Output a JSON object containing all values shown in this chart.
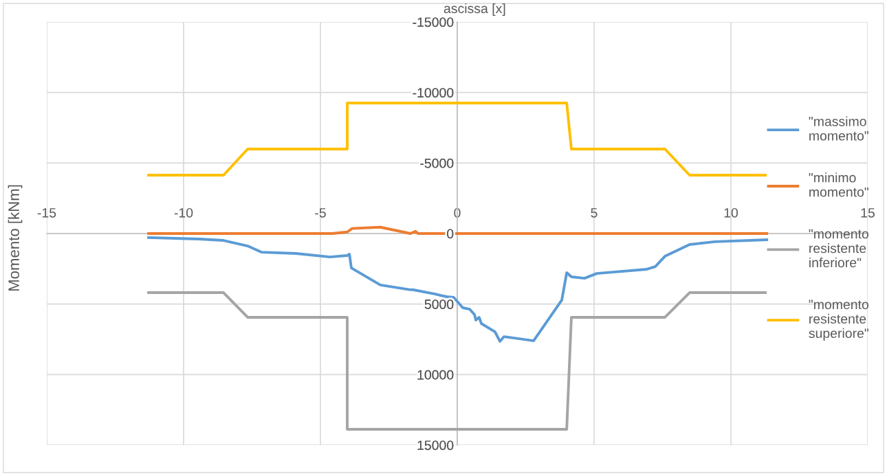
{
  "chart_data": {
    "type": "line",
    "xlabel": "ascissa [x]",
    "ylabel": "Momento [kNm]",
    "xlim": [
      -15,
      15
    ],
    "xticks": [
      -15,
      -10,
      -5,
      0,
      5,
      10,
      15
    ],
    "ylim": [
      15000,
      -15000
    ],
    "yticks": [
      -15000,
      -10000,
      -5000,
      0,
      5000,
      10000,
      15000
    ],
    "grid": true,
    "legend": "right",
    "line_style": "solid",
    "series": [
      {
        "name": "\"massimo\nmomento\"",
        "color": "#5b9bd5",
        "x": [
          -11.28,
          -9.42,
          -8.54,
          -7.66,
          -7.16,
          -5.9,
          -4.65,
          -4.02,
          -3.94,
          -3.87,
          -2.81,
          -1.71,
          -1.63,
          -0.8,
          -0.63,
          -0.38,
          -0.13,
          0.2,
          0.45,
          0.63,
          0.68,
          0.8,
          0.88,
          1.38,
          1.56,
          1.71,
          2.79,
          3.82,
          4.0,
          4.17,
          4.65,
          5.1,
          6.93,
          7.24,
          7.59,
          8.49,
          9.42,
          11.31
        ],
        "values": [
          290,
          390,
          490,
          880,
          1320,
          1410,
          1660,
          1560,
          1460,
          2440,
          3650,
          3990,
          3980,
          4290,
          4380,
          4480,
          4530,
          5260,
          5360,
          5750,
          6140,
          5940,
          6380,
          6970,
          7650,
          7310,
          7600,
          4720,
          2780,
          3070,
          3170,
          2830,
          2530,
          2340,
          1610,
          780,
          580,
          440
        ]
      },
      {
        "name": "\"minimo\nmomento\"",
        "color": "#ed7d31",
        "x": [
          -11.28,
          -4.57,
          -4.02,
          -3.84,
          -2.81,
          -1.71,
          -1.53,
          -1.43,
          11.31
        ],
        "values": [
          0,
          0,
          -110,
          -360,
          -450,
          0,
          -160,
          0,
          0
        ]
      },
      {
        "name": "\"momento\nresistente\ninferiore\"",
        "color": "#a5a5a5",
        "x": [
          -11.28,
          -8.54,
          -7.66,
          -4.02,
          -4.02,
          4.0,
          4.17,
          7.59,
          8.49,
          11.26
        ],
        "values": [
          4190,
          4190,
          5940,
          5940,
          13880,
          13880,
          5940,
          5940,
          4190,
          4190
        ]
      },
      {
        "name": "\"momento\nresistente\nsuperiore\"",
        "color": "#ffc000",
        "x": [
          -11.28,
          -8.54,
          -7.66,
          -4.02,
          -4.02,
          4.0,
          4.17,
          7.59,
          8.49,
          11.26
        ],
        "values": [
          -4140,
          -4140,
          -5990,
          -5990,
          -9250,
          -9250,
          -5990,
          -5990,
          -4140,
          -4140
        ]
      }
    ]
  }
}
